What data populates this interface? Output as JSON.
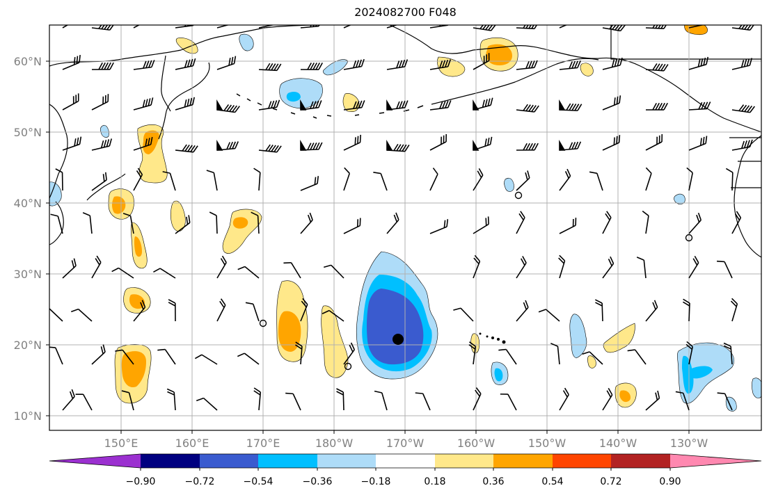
{
  "title": "2024082700 F048",
  "map": {
    "lat_labels": [
      "60°N",
      "50°N",
      "40°N",
      "30°N",
      "20°N",
      "10°N"
    ],
    "lon_labels": [
      "150°E",
      "160°E",
      "170°E",
      "180°W",
      "170°W",
      "160°W",
      "150°W",
      "140°W",
      "130°W"
    ],
    "lat_range": [
      8,
      64.6
    ],
    "lon_range": [
      140,
      240
    ],
    "grid": true
  },
  "colorbar": {
    "labels": [
      "−0.90",
      "−0.72",
      "−0.54",
      "−0.36",
      "−0.18",
      "0.18",
      "0.36",
      "0.54",
      "0.72",
      "0.90"
    ],
    "colors": [
      "#9b30d0",
      "#000080",
      "#3a5bcf",
      "#00bfff",
      "#aedcf8",
      "#ffffff",
      "#ffe88a",
      "#ffa500",
      "#ff4500",
      "#b22222",
      "#ff88b0"
    ],
    "extend": "both"
  },
  "markers": {
    "high_dot": "filled-circle",
    "calm": "open-circle"
  }
}
